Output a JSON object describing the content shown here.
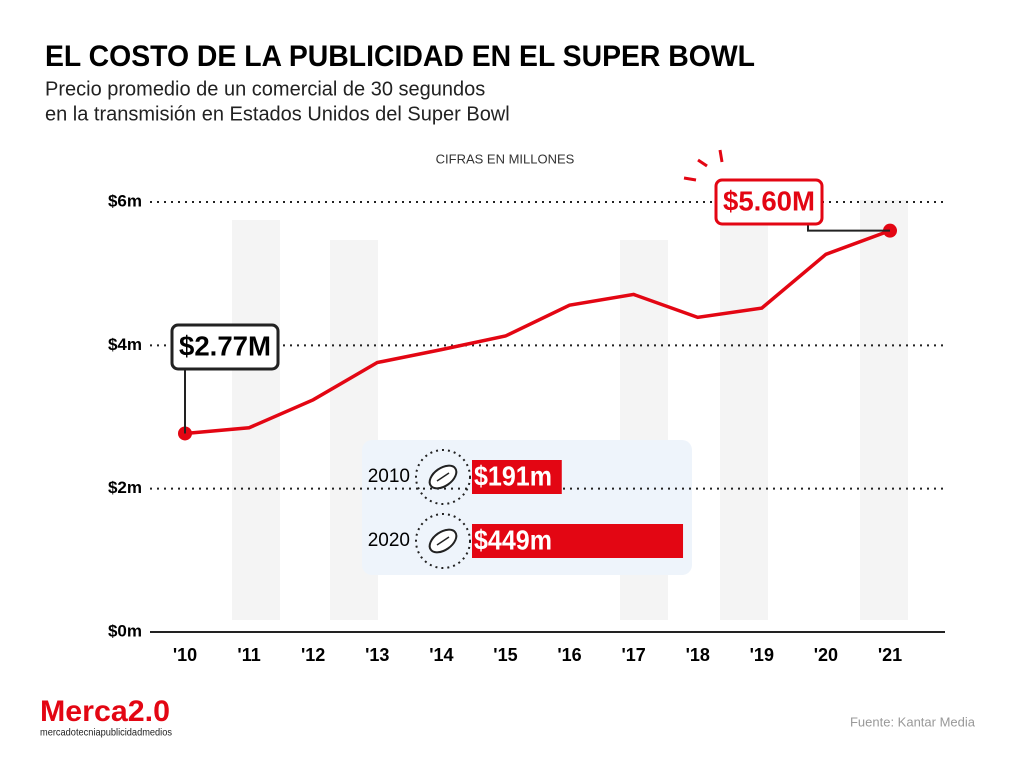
{
  "title": "EL COSTO DE LA PUBLICIDAD EN EL SUPER BOWL",
  "subtitle": [
    "Precio promedio de un comercial de 30 segundos",
    "en la transmisión en Estados Unidos del Super Bowl"
  ],
  "source": "Fuente:  Kantar Media",
  "logo": {
    "name": "Merca2.0",
    "tagline": "mercadotecniapublicidadmedios"
  },
  "chart_data": [
    {
      "type": "line",
      "y_label": "CIFRAS EN MILLONES",
      "categories": [
        "'10",
        "'11",
        "'12",
        "'13",
        "'14",
        "'15",
        "'16",
        "'17",
        "'18",
        "'19",
        "'20",
        "'21"
      ],
      "series": [
        {
          "name": "Precio promedio",
          "color": "#e30613",
          "values": [
            2.77,
            2.85,
            3.24,
            3.76,
            3.94,
            4.13,
            4.56,
            4.71,
            4.39,
            4.52,
            5.27,
            5.6
          ],
          "value_labels": [
            "$2.77M",
            null,
            null,
            null,
            null,
            null,
            null,
            null,
            null,
            null,
            null,
            "$5.60M"
          ]
        }
      ],
      "ylim": [
        0,
        6
      ],
      "yticks": [
        {
          "value": 0,
          "label": "$0m"
        },
        {
          "value": 2,
          "label": "$2m"
        },
        {
          "value": 4,
          "label": "$4m"
        },
        {
          "value": 6,
          "label": "$6m"
        }
      ],
      "grid": true
    },
    {
      "type": "bar",
      "categories": [
        "2010",
        "2020"
      ],
      "values": [
        191,
        449
      ],
      "value_labels": [
        "$191m",
        "$449m"
      ],
      "color": "#e30613"
    }
  ]
}
